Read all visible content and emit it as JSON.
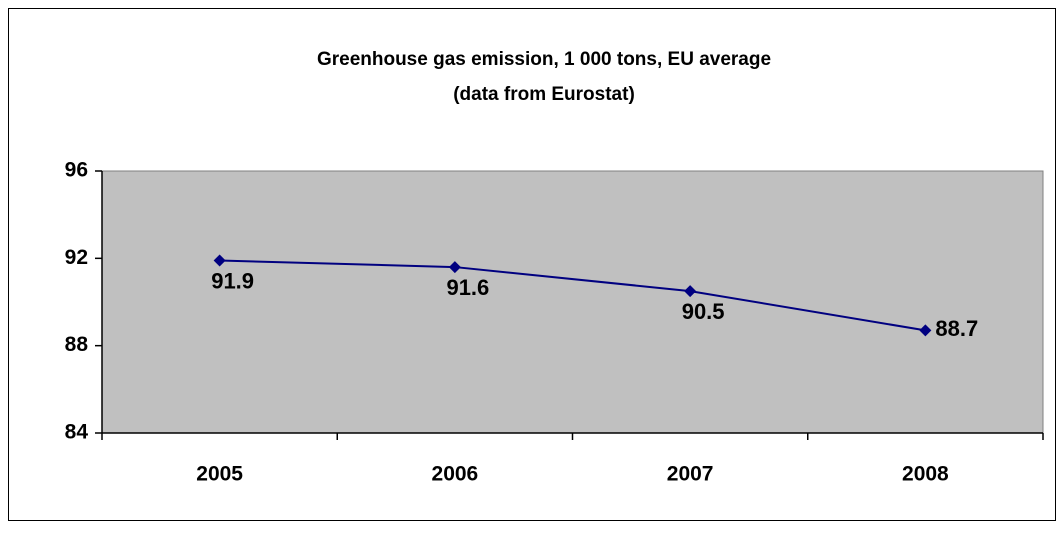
{
  "chart_data": {
    "type": "line",
    "title": "Greenhouse gas emission, 1 000 tons, EU average",
    "subtitle": "(data from Eurostat)",
    "categories": [
      "2005",
      "2006",
      "2007",
      "2008"
    ],
    "series": [
      {
        "name": "Greenhouse gas emission",
        "color": "#000080",
        "values": [
          91.9,
          91.6,
          90.5,
          88.7
        ]
      }
    ],
    "ylim": [
      84,
      96
    ],
    "yticks": [
      84,
      88,
      92,
      96
    ],
    "grid": false,
    "plot_background": "#c0c0c0"
  }
}
